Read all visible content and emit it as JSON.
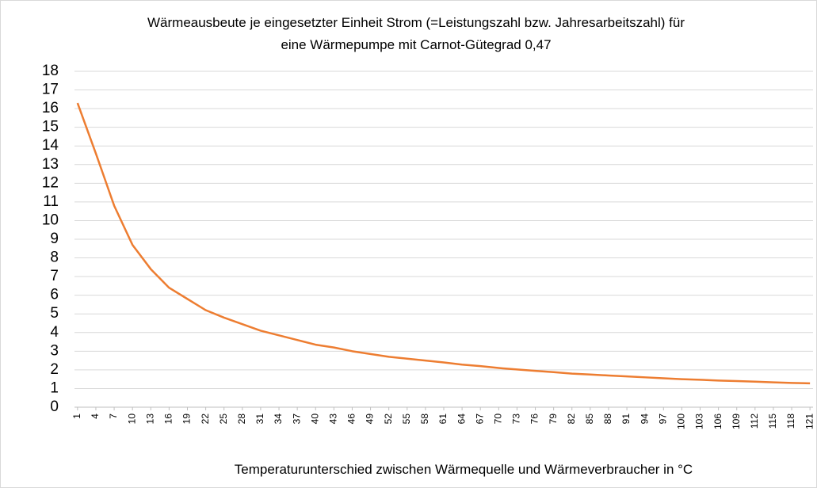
{
  "chart_data": {
    "type": "line",
    "title": [
      "Wärmeausbeute je eingesetzter Einheit Strom (=Leistungszahl bzw. Jahresarbeitszahl) für",
      "eine Wärmepumpe mit Carnot-Gütegrad 0,47"
    ],
    "x_label": "Temperaturunterschied zwischen Wärmequelle und Wärmeverbraucher in °C",
    "x": [
      1,
      4,
      7,
      10,
      13,
      16,
      19,
      22,
      25,
      28,
      31,
      34,
      37,
      40,
      43,
      46,
      49,
      52,
      55,
      58,
      61,
      64,
      67,
      70,
      73,
      76,
      79,
      82,
      85,
      88,
      91,
      94,
      97,
      100,
      103,
      106,
      109,
      112,
      115,
      118,
      121
    ],
    "series": [
      {
        "color": "#ed7d31",
        "values": [
          16.3,
          13.6,
          10.8,
          8.7,
          7.4,
          6.4,
          5.8,
          5.2,
          4.8,
          4.45,
          4.1,
          3.85,
          3.6,
          3.35,
          3.2,
          3.0,
          2.85,
          2.7,
          2.6,
          2.5,
          2.4,
          2.28,
          2.2,
          2.1,
          2.02,
          1.95,
          1.88,
          1.8,
          1.75,
          1.7,
          1.65,
          1.6,
          1.55,
          1.5,
          1.47,
          1.43,
          1.4,
          1.37,
          1.33,
          1.3,
          1.28
        ]
      }
    ],
    "xlim": [
      0.5,
      121.5
    ],
    "xticks": [
      1,
      4,
      7,
      10,
      13,
      16,
      19,
      22,
      25,
      28,
      31,
      34,
      37,
      40,
      43,
      46,
      49,
      52,
      55,
      58,
      61,
      64,
      67,
      70,
      73,
      76,
      79,
      82,
      85,
      88,
      91,
      94,
      97,
      100,
      103,
      106,
      109,
      112,
      115,
      118,
      121
    ],
    "ylim": [
      0,
      18
    ],
    "yticks": [
      0,
      1,
      2,
      3,
      4,
      5,
      6,
      7,
      8,
      9,
      10,
      11,
      12,
      13,
      14,
      15,
      16,
      17,
      18
    ],
    "grid": true
  }
}
